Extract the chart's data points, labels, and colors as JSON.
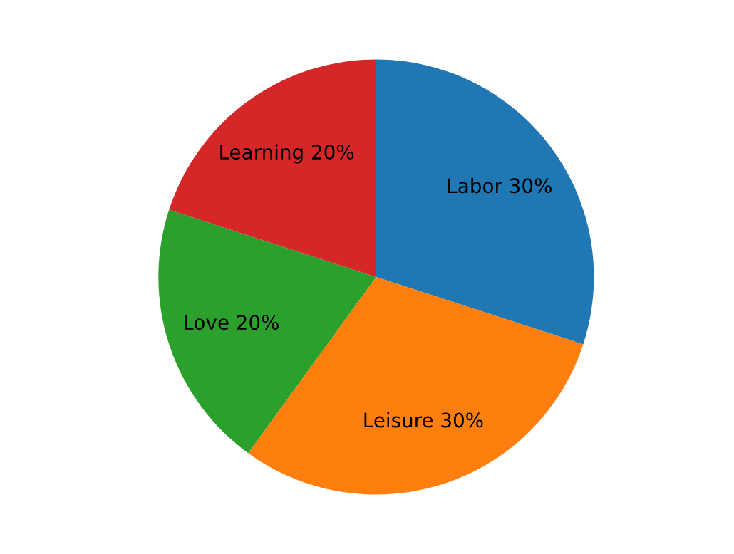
{
  "chart_data": {
    "type": "pie",
    "categories": [
      "Labor",
      "Leisure",
      "Love",
      "Learning"
    ],
    "values": [
      30,
      30,
      20,
      20
    ],
    "value_labels": [
      "30%",
      "30%",
      "20%",
      "20%"
    ],
    "colors": [
      "#1f77b4",
      "#ff7f0e",
      "#2ca02c",
      "#d62728"
    ]
  }
}
